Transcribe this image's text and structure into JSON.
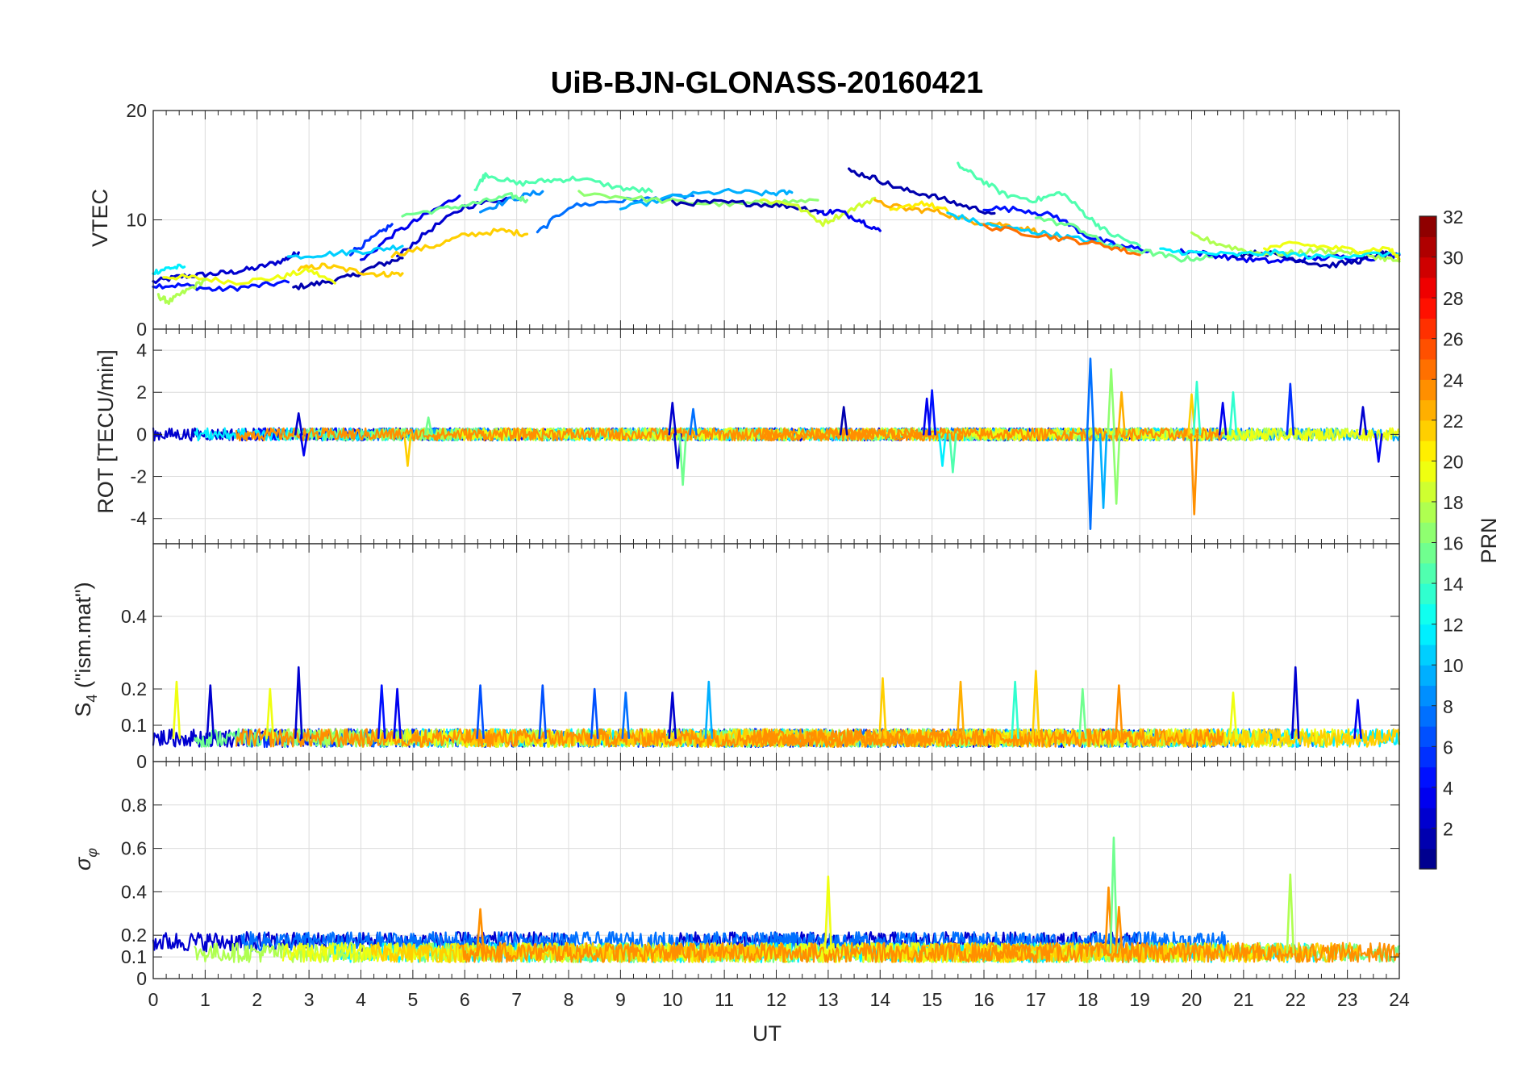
{
  "title": "UiB-BJN-GLONASS-20160421",
  "chart_data": [
    {
      "type": "line",
      "panel": "vtec",
      "ylabel": "VTEC",
      "ylim": [
        0,
        20
      ],
      "yticks": [
        0,
        10,
        20
      ],
      "grid": true,
      "series": [
        {
          "prn": 3,
          "x": [
            0,
            0.5,
            1,
            1.5,
            2,
            2.5,
            2.8
          ],
          "y": [
            4.3,
            4.8,
            5.0,
            5.2,
            5.6,
            6.3,
            7.0
          ]
        },
        {
          "prn": 5,
          "x": [
            0,
            0.6,
            1.2,
            1.9,
            2.6
          ],
          "y": [
            4.0,
            4.0,
            3.6,
            3.9,
            4.3
          ]
        },
        {
          "prn": 2,
          "x": [
            2.7,
            3.2,
            3.8,
            4.3,
            4.8
          ],
          "y": [
            3.8,
            4.2,
            4.8,
            5.8,
            6.5
          ]
        },
        {
          "prn": 20,
          "x": [
            0.2,
            0.8,
            1.6,
            2.4,
            3.0,
            3.5
          ],
          "y": [
            4.8,
            4.7,
            4.3,
            4.7,
            5.4,
            4.2
          ]
        },
        {
          "prn": 12,
          "x": [
            0,
            0.3,
            0.6
          ],
          "y": [
            5.2,
            5.6,
            5.7
          ]
        },
        {
          "prn": 18,
          "x": [
            0.1,
            0.3,
            0.6,
            1.0
          ],
          "y": [
            3.0,
            2.5,
            3.4,
            4.5
          ]
        },
        {
          "prn": 22,
          "x": [
            2.8,
            3.3,
            3.9,
            4.4,
            4.8
          ],
          "y": [
            5.5,
            5.8,
            5.3,
            5.0,
            5.1
          ]
        },
        {
          "prn": 4,
          "x": [
            4.0,
            4.6,
            5.2,
            5.9
          ],
          "y": [
            6.2,
            8.6,
            10.3,
            12.2
          ]
        },
        {
          "prn": 6,
          "x": [
            3.8,
            4.2,
            4.6
          ],
          "y": [
            7.0,
            8.2,
            9.6
          ]
        },
        {
          "prn": 3,
          "x": [
            4.7,
            5.3,
            6.0,
            6.8
          ],
          "y": [
            6.6,
            9.0,
            11.2,
            12.0
          ]
        },
        {
          "prn": 11,
          "x": [
            2.6,
            3.4,
            4.2,
            4.8
          ],
          "y": [
            6.6,
            6.9,
            7.2,
            7.6
          ]
        },
        {
          "prn": 9,
          "x": [
            6.3,
            6.9,
            7.5
          ],
          "y": [
            10.8,
            11.9,
            12.6
          ]
        },
        {
          "prn": 16,
          "x": [
            4.8,
            5.6,
            6.3,
            6.9,
            7.2
          ],
          "y": [
            10.4,
            11.0,
            11.6,
            12.2,
            11.8
          ]
        },
        {
          "prn": 22,
          "x": [
            4.6,
            5.4,
            6.0,
            6.7,
            7.2
          ],
          "y": [
            6.8,
            7.6,
            8.6,
            9.0,
            8.7
          ]
        },
        {
          "prn": 15,
          "x": [
            6.2,
            6.4,
            7.0,
            7.6,
            8.2,
            9.0,
            9.6
          ],
          "y": [
            12.8,
            14.2,
            13.3,
            13.6,
            13.8,
            12.9,
            12.6
          ]
        },
        {
          "prn": 8,
          "x": [
            7.4,
            8.0,
            8.8,
            9.6,
            10.4
          ],
          "y": [
            8.8,
            11.2,
            11.7,
            11.9,
            12.2
          ]
        },
        {
          "prn": 10,
          "x": [
            9.0,
            10.0,
            11.0,
            11.8,
            12.3
          ],
          "y": [
            11.0,
            12.1,
            12.6,
            12.4,
            12.5
          ]
        },
        {
          "prn": 17,
          "x": [
            8.2,
            9.2,
            10.2,
            11.2,
            12.0,
            12.8
          ],
          "y": [
            12.5,
            12.0,
            11.6,
            11.4,
            11.6,
            11.8
          ]
        },
        {
          "prn": 2,
          "x": [
            10.0,
            10.8,
            11.5,
            12.2,
            12.9
          ],
          "y": [
            11.5,
            11.6,
            11.5,
            11.3,
            10.8
          ]
        },
        {
          "prn": 19,
          "x": [
            11.7,
            12.3,
            12.9,
            13.4,
            13.9
          ],
          "y": [
            11.8,
            11.5,
            9.7,
            10.8,
            12.0
          ]
        },
        {
          "prn": 4,
          "x": [
            12.8,
            13.2,
            13.6,
            14.0
          ],
          "y": [
            10.6,
            10.8,
            10.0,
            9.0
          ]
        },
        {
          "prn": 2,
          "x": [
            13.4,
            13.9,
            14.4,
            15.0,
            15.6,
            16.2
          ],
          "y": [
            14.5,
            13.8,
            12.8,
            12.2,
            11.3,
            10.6
          ]
        },
        {
          "prn": 23,
          "x": [
            13.9,
            14.5,
            15.1,
            15.7,
            16.3,
            16.9,
            17.5
          ],
          "y": [
            11.6,
            11.0,
            10.8,
            9.9,
            9.6,
            9.1,
            8.3
          ]
        },
        {
          "prn": 21,
          "x": [
            14.2,
            14.8,
            15.3
          ],
          "y": [
            10.7,
            11.6,
            10.8
          ]
        },
        {
          "prn": 15,
          "x": [
            15.5,
            15.9,
            16.4,
            17.0,
            17.5,
            18.0,
            18.4,
            19.0
          ],
          "y": [
            15.0,
            13.8,
            12.3,
            11.8,
            12.5,
            10.3,
            8.8,
            7.6
          ]
        },
        {
          "prn": 11,
          "x": [
            15.3,
            16.0,
            16.8,
            17.4,
            18.1,
            18.8
          ],
          "y": [
            10.6,
            9.6,
            9.0,
            8.6,
            8.0,
            7.4
          ]
        },
        {
          "prn": 5,
          "x": [
            16.0,
            16.8,
            17.4,
            18.0,
            18.6,
            19.2
          ],
          "y": [
            11.1,
            10.9,
            10.3,
            8.5,
            7.6,
            7.2
          ]
        },
        {
          "prn": 16,
          "x": [
            17.0,
            17.8,
            18.4,
            19.2,
            19.8,
            20.4
          ],
          "y": [
            10.2,
            9.3,
            7.6,
            7.0,
            6.4,
            6.6
          ]
        },
        {
          "prn": 25,
          "x": [
            16.0,
            16.8,
            17.6,
            18.4,
            19.0
          ],
          "y": [
            9.4,
            8.8,
            8.2,
            7.6,
            6.8
          ]
        },
        {
          "prn": 4,
          "x": [
            19.8,
            20.4,
            21.0,
            21.6,
            22.2,
            22.8,
            23.4,
            24.0
          ],
          "y": [
            7.2,
            6.8,
            6.4,
            6.2,
            6.4,
            6.6,
            6.5,
            6.8
          ]
        },
        {
          "prn": 2,
          "x": [
            20.8,
            21.4,
            22.0,
            22.6,
            23.2,
            23.6,
            23.8
          ],
          "y": [
            6.8,
            7.0,
            6.4,
            5.8,
            6.2,
            6.9,
            6.8
          ]
        },
        {
          "prn": 18,
          "x": [
            20.0,
            20.6,
            21.2,
            21.8,
            22.4,
            23.0,
            23.6,
            24.0
          ],
          "y": [
            8.6,
            7.7,
            7.0,
            6.9,
            7.2,
            7.1,
            6.6,
            6.2
          ]
        },
        {
          "prn": 12,
          "x": [
            19.4,
            20.0,
            20.8,
            21.6,
            22.4,
            23.2,
            24.0
          ],
          "y": [
            7.2,
            7.0,
            6.8,
            7.0,
            6.6,
            6.8,
            6.9
          ]
        },
        {
          "prn": 20,
          "x": [
            21.4,
            22.0,
            22.6,
            23.2,
            23.8,
            24.0
          ],
          "y": [
            7.4,
            7.8,
            7.5,
            7.2,
            7.4,
            6.4
          ]
        }
      ]
    },
    {
      "type": "line",
      "panel": "rot",
      "ylabel": "ROT [TECU/min]",
      "ylim": [
        -5.2,
        5
      ],
      "yticks": [
        -4,
        -2,
        0,
        2,
        4
      ],
      "grid": true,
      "spikes": [
        {
          "prn": 3,
          "x": 2.8,
          "y": 1.0
        },
        {
          "prn": 4,
          "x": 2.9,
          "y": -1.0
        },
        {
          "prn": 22,
          "x": 4.9,
          "y": -1.5
        },
        {
          "prn": 16,
          "x": 5.3,
          "y": 0.8
        },
        {
          "prn": 3,
          "x": 10.0,
          "y": 1.5
        },
        {
          "prn": 3,
          "x": 10.1,
          "y": -1.6
        },
        {
          "prn": 16,
          "x": 10.2,
          "y": -2.4
        },
        {
          "prn": 8,
          "x": 10.4,
          "y": 1.2
        },
        {
          "prn": 2,
          "x": 13.3,
          "y": 1.3
        },
        {
          "prn": 4,
          "x": 14.9,
          "y": 1.7
        },
        {
          "prn": 5,
          "x": 15.0,
          "y": 2.1
        },
        {
          "prn": 12,
          "x": 15.2,
          "y": -1.5
        },
        {
          "prn": 15,
          "x": 15.4,
          "y": -1.8
        },
        {
          "prn": 8,
          "x": 18.05,
          "y": 3.6
        },
        {
          "prn": 8,
          "x": 18.05,
          "y": -4.5
        },
        {
          "prn": 10,
          "x": 18.3,
          "y": -3.5
        },
        {
          "prn": 17,
          "x": 18.45,
          "y": 3.1
        },
        {
          "prn": 17,
          "x": 18.55,
          "y": -3.3
        },
        {
          "prn": 23,
          "x": 18.65,
          "y": 2.0
        },
        {
          "prn": 22,
          "x": 20.0,
          "y": 1.9
        },
        {
          "prn": 24,
          "x": 20.05,
          "y": -3.8
        },
        {
          "prn": 14,
          "x": 20.1,
          "y": 2.5
        },
        {
          "prn": 4,
          "x": 20.6,
          "y": 1.5
        },
        {
          "prn": 14,
          "x": 20.8,
          "y": 2.0
        },
        {
          "prn": 6,
          "x": 21.9,
          "y": 2.4
        },
        {
          "prn": 3,
          "x": 23.3,
          "y": 1.3
        },
        {
          "prn": 4,
          "x": 23.6,
          "y": -1.3
        }
      ]
    },
    {
      "type": "line",
      "panel": "s4",
      "ylabel": "S4 (\"ism.mat\")",
      "ylim": [
        0,
        0.6
      ],
      "yticks": [
        0,
        0.1,
        0.2,
        0.4
      ],
      "grid": true,
      "spikes": [
        {
          "prn": 20,
          "x": 0.45,
          "y": 0.22
        },
        {
          "prn": 3,
          "x": 1.1,
          "y": 0.21
        },
        {
          "prn": 20,
          "x": 2.25,
          "y": 0.2
        },
        {
          "prn": 3,
          "x": 2.8,
          "y": 0.26
        },
        {
          "prn": 5,
          "x": 4.4,
          "y": 0.21
        },
        {
          "prn": 4,
          "x": 4.7,
          "y": 0.2
        },
        {
          "prn": 7,
          "x": 6.3,
          "y": 0.21
        },
        {
          "prn": 7,
          "x": 7.5,
          "y": 0.21
        },
        {
          "prn": 7,
          "x": 8.5,
          "y": 0.2
        },
        {
          "prn": 8,
          "x": 9.1,
          "y": 0.19
        },
        {
          "prn": 3,
          "x": 10.0,
          "y": 0.19
        },
        {
          "prn": 10,
          "x": 10.7,
          "y": 0.22
        },
        {
          "prn": 22,
          "x": 14.05,
          "y": 0.23
        },
        {
          "prn": 23,
          "x": 15.55,
          "y": 0.22
        },
        {
          "prn": 14,
          "x": 16.6,
          "y": 0.22
        },
        {
          "prn": 22,
          "x": 17.0,
          "y": 0.25
        },
        {
          "prn": 24,
          "x": 18.6,
          "y": 0.21
        },
        {
          "prn": 16,
          "x": 17.9,
          "y": 0.2
        },
        {
          "prn": 20,
          "x": 20.8,
          "y": 0.19
        },
        {
          "prn": 3,
          "x": 22.0,
          "y": 0.26
        },
        {
          "prn": 4,
          "x": 23.2,
          "y": 0.17
        }
      ]
    },
    {
      "type": "line",
      "panel": "sigma",
      "ylabel": "σφ",
      "ylim": [
        0,
        1
      ],
      "yticks": [
        0,
        0.1,
        0.2,
        0.4,
        0.6,
        0.8
      ],
      "grid": true,
      "spikes": [
        {
          "prn": 24,
          "x": 6.3,
          "y": 0.32
        },
        {
          "prn": 20,
          "x": 13.0,
          "y": 0.47
        },
        {
          "prn": 24,
          "x": 18.4,
          "y": 0.42
        },
        {
          "prn": 16,
          "x": 18.5,
          "y": 0.65
        },
        {
          "prn": 24,
          "x": 18.6,
          "y": 0.33
        },
        {
          "prn": 18,
          "x": 21.9,
          "y": 0.48
        }
      ]
    }
  ],
  "xaxis": {
    "label": "UT",
    "lim": [
      0,
      24
    ],
    "ticks": [
      "0",
      "1",
      "2",
      "3",
      "4",
      "5",
      "6",
      "7",
      "8",
      "9",
      "10",
      "11",
      "12",
      "13",
      "14",
      "15",
      "16",
      "17",
      "18",
      "19",
      "20",
      "21",
      "22",
      "23",
      "24"
    ]
  },
  "colorbar": {
    "label": "PRN",
    "colormap": "jet",
    "lim": [
      1,
      32
    ],
    "ticks": [
      "2",
      "4",
      "6",
      "8",
      "10",
      "12",
      "14",
      "16",
      "18",
      "20",
      "22",
      "24",
      "26",
      "28",
      "30",
      "32"
    ]
  },
  "labels": {
    "vtec": "VTEC",
    "rot": "ROT [TECU/min]",
    "s4_main": "S",
    "s4_sub": "4",
    "s4_rest": " (\"ism.mat\")",
    "sigma_main": "σ",
    "sigma_sub": "φ"
  }
}
